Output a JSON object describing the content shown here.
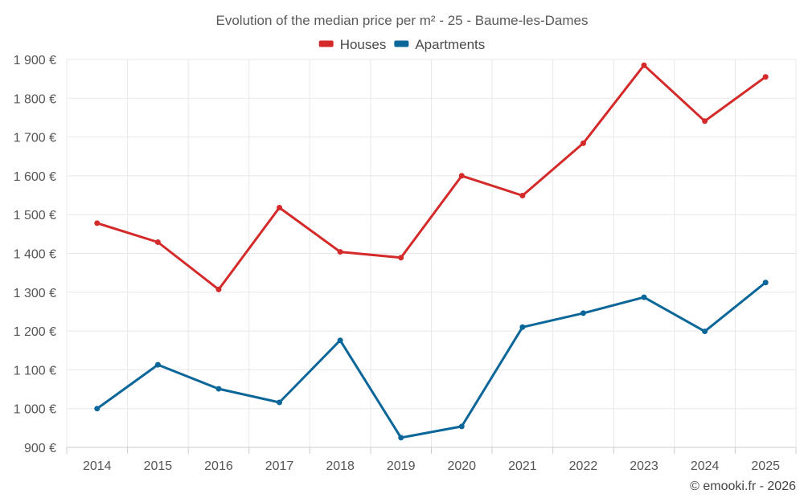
{
  "chart_data": {
    "type": "line",
    "title": "Evolution of the median price per m² - 25 - Baume-les-Dames",
    "categories": [
      "2014",
      "2015",
      "2016",
      "2017",
      "2018",
      "2019",
      "2020",
      "2021",
      "2022",
      "2023",
      "2024",
      "2025"
    ],
    "series": [
      {
        "name": "Houses",
        "color": "#d42a2a",
        "values": [
          1478,
          1429,
          1307,
          1518,
          1404,
          1389,
          1600,
          1549,
          1684,
          1885,
          1741,
          1855
        ]
      },
      {
        "name": "Apartments",
        "color": "#0b6699",
        "values": [
          1000,
          1113,
          1051,
          1016,
          1176,
          925,
          954,
          1210,
          1246,
          1287,
          1199,
          1325
        ]
      }
    ],
    "ylim": [
      900,
      1900
    ],
    "yticks": [
      900,
      1000,
      1100,
      1200,
      1300,
      1400,
      1500,
      1600,
      1700,
      1800,
      1900
    ],
    "ytick_labels": [
      "900 €",
      "1 000 €",
      "1 100 €",
      "1 200 €",
      "1 300 €",
      "1 400 €",
      "1 500 €",
      "1 600 €",
      "1 700 €",
      "1 800 €",
      "1 900 €"
    ],
    "xlabel": "",
    "ylabel": "",
    "grid": true,
    "legend_position": "top-center"
  },
  "credit": "© emooki.fr - 2026"
}
